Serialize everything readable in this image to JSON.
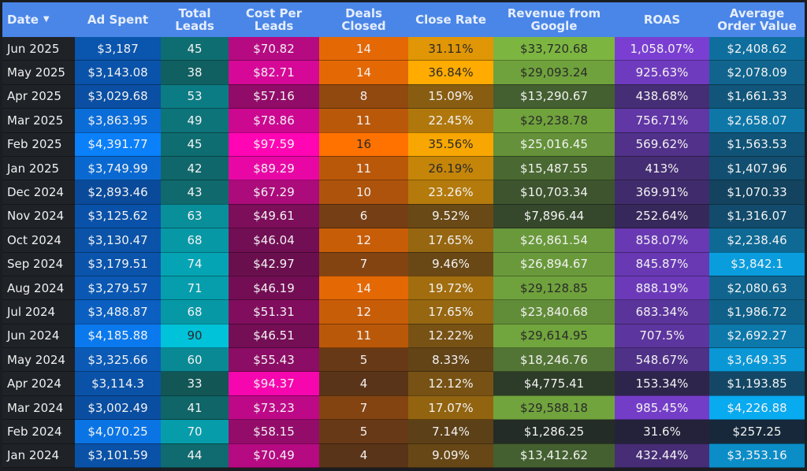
{
  "chart_data": {
    "type": "heatmap",
    "title": "",
    "sort_indicator": "▼",
    "columns": [
      "Date",
      "Ad Spent",
      "Total Leads",
      "Cost Per Leads",
      "Deals Closed",
      "Close Rate",
      "Revenue from Google",
      "ROAS",
      "Average Order Value"
    ],
    "column_colors": {
      "low": [
        "#1f2227",
        "#0a4a9a",
        "#125656",
        "#6a0f4e",
        "#5a3418",
        "#5c4018",
        "#232c26",
        "#24223a",
        "#16283a"
      ],
      "high": [
        "#1f2227",
        "#0a80fa",
        "#00c2d8",
        "#ff05b4",
        "#ff7200",
        "#ffab00",
        "#7cb640",
        "#7a3fd2",
        "#08aaf0"
      ]
    },
    "rows": [
      [
        "Jun 2025",
        "$3,187",
        "45",
        "$70.82",
        "14",
        "31.11%",
        "$33,720.68",
        "1,058.07%",
        "$2,408.62"
      ],
      [
        "May 2025",
        "$3,143.08",
        "38",
        "$82.71",
        "14",
        "36.84%",
        "$29,093.24",
        "925.63%",
        "$2,078.09"
      ],
      [
        "Apr 2025",
        "$3,029.68",
        "53",
        "$57.16",
        "8",
        "15.09%",
        "$13,290.67",
        "438.68%",
        "$1,661.33"
      ],
      [
        "Mar 2025",
        "$3,863.95",
        "49",
        "$78.86",
        "11",
        "22.45%",
        "$29,238.78",
        "756.71%",
        "$2,658.07"
      ],
      [
        "Feb 2025",
        "$4,391.77",
        "45",
        "$97.59",
        "16",
        "35.56%",
        "$25,016.45",
        "569.62%",
        "$1,563.53"
      ],
      [
        "Jan 2025",
        "$3,749.99",
        "42",
        "$89.29",
        "11",
        "26.19%",
        "$15,487.55",
        "413%",
        "$1,407.96"
      ],
      [
        "Dec 2024",
        "$2,893.46",
        "43",
        "$67.29",
        "10",
        "23.26%",
        "$10,703.34",
        "369.91%",
        "$1,070.33"
      ],
      [
        "Nov 2024",
        "$3,125.62",
        "63",
        "$49.61",
        "6",
        "9.52%",
        "$7,896.44",
        "252.64%",
        "$1,316.07"
      ],
      [
        "Oct 2024",
        "$3,130.47",
        "68",
        "$46.04",
        "12",
        "17.65%",
        "$26,861.54",
        "858.07%",
        "$2,238.46"
      ],
      [
        "Sep 2024",
        "$3,179.51",
        "74",
        "$42.97",
        "7",
        "9.46%",
        "$26,894.67",
        "845.87%",
        "$3,842.1"
      ],
      [
        "Aug 2024",
        "$3,279.57",
        "71",
        "$46.19",
        "14",
        "19.72%",
        "$29,128.85",
        "888.19%",
        "$2,080.63"
      ],
      [
        "Jul 2024",
        "$3,488.87",
        "68",
        "$51.31",
        "12",
        "17.65%",
        "$23,840.68",
        "683.34%",
        "$1,986.72"
      ],
      [
        "Jun 2024",
        "$4,185.88",
        "90",
        "$46.51",
        "11",
        "12.22%",
        "$29,614.95",
        "707.5%",
        "$2,692.27"
      ],
      [
        "May 2024",
        "$3,325.66",
        "60",
        "$55.43",
        "5",
        "8.33%",
        "$18,246.76",
        "548.67%",
        "$3,649.35"
      ],
      [
        "Apr 2024",
        "$3,114.3",
        "33",
        "$94.37",
        "4",
        "12.12%",
        "$4,775.41",
        "153.34%",
        "$1,193.85"
      ],
      [
        "Mar 2024",
        "$3,002.49",
        "41",
        "$73.23",
        "7",
        "17.07%",
        "$29,588.18",
        "985.45%",
        "$4,226.88"
      ],
      [
        "Feb 2024",
        "$4,070.25",
        "70",
        "$58.15",
        "5",
        "7.14%",
        "$1,286.25",
        "31.6%",
        "$257.25"
      ],
      [
        "Jan 2024",
        "$3,101.59",
        "44",
        "$70.49",
        "4",
        "9.09%",
        "$13,412.62",
        "432.44%",
        "$3,353.16"
      ]
    ]
  }
}
